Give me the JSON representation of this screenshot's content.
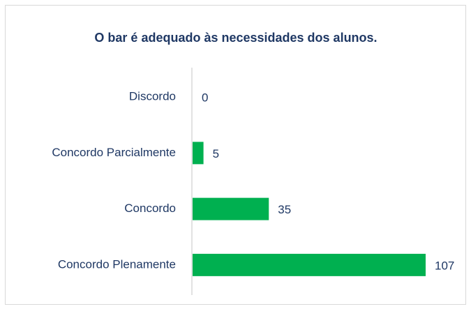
{
  "chart_data": {
    "type": "barh",
    "title": "O bar é adequado às necessidades dos alunos.",
    "categories": [
      "Discordo",
      "Concordo Parcialmente",
      "Concordo",
      "Concordo Plenamente"
    ],
    "values": [
      0,
      5,
      35,
      107
    ],
    "color": "#00b050"
  }
}
